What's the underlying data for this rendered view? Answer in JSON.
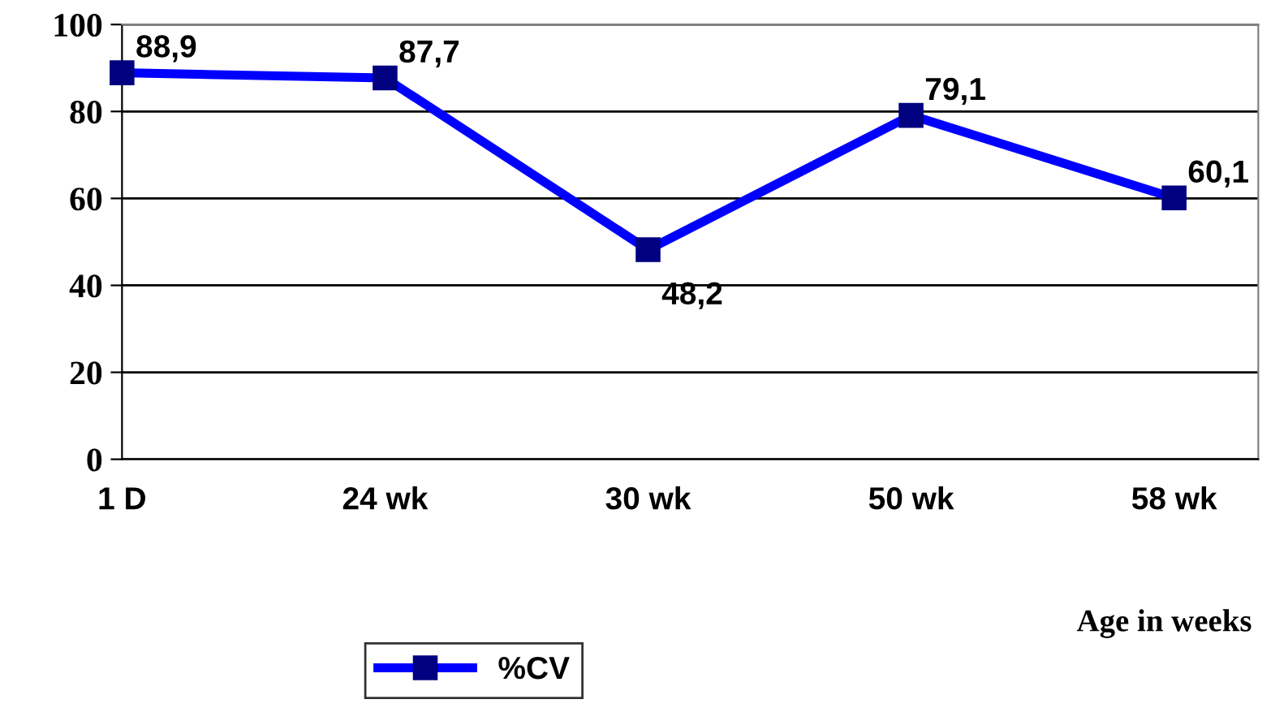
{
  "chart_data": {
    "type": "line",
    "xlabel": "Age in weeks",
    "categories": [
      "1 D",
      "24 wk",
      "30 wk",
      "50 wk",
      "58 wk"
    ],
    "series": [
      {
        "name": "%CV",
        "color": "#0000ff",
        "values": [
          88.9,
          87.7,
          48.2,
          79.1,
          60.1
        ],
        "value_labels": [
          "88,9",
          "87,7",
          "48,2",
          "79,1",
          "60,1"
        ]
      }
    ],
    "ylim": [
      0,
      100
    ],
    "yticks": [
      0,
      20,
      40,
      60,
      80,
      100
    ],
    "grid": "y",
    "legend": "bottom",
    "marker": "square",
    "line_style": "solid"
  }
}
